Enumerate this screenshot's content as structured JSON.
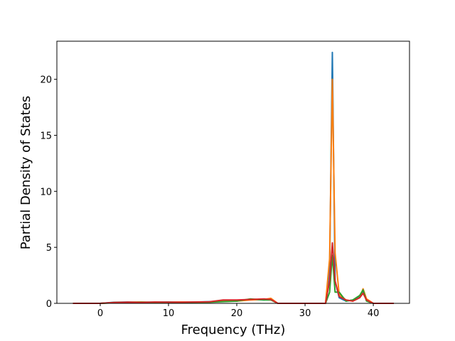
{
  "chart_data": {
    "type": "line",
    "xlabel": "Frequency (THz)",
    "ylabel": "Partial Density of States",
    "x": [
      -4,
      0,
      1,
      2,
      4,
      6,
      8,
      10,
      12,
      14,
      16,
      18,
      20,
      22,
      24,
      25,
      26,
      30,
      33,
      33.6,
      34,
      34.4,
      35,
      36,
      37,
      38,
      38.5,
      39,
      40,
      43
    ],
    "series": [
      {
        "color": "#1f77b4",
        "values": [
          0,
          0,
          0.05,
          0.1,
          0.12,
          0.1,
          0.1,
          0.12,
          0.1,
          0.12,
          0.15,
          0.2,
          0.25,
          0.35,
          0.3,
          0.4,
          0,
          0,
          0,
          3,
          22.4,
          2,
          0.5,
          0.2,
          0.3,
          0.6,
          1.1,
          0.3,
          0,
          0
        ]
      },
      {
        "color": "#ff7f0e",
        "values": [
          0,
          0,
          0.03,
          0.08,
          0.1,
          0.12,
          0.08,
          0.1,
          0.12,
          0.1,
          0.12,
          0.18,
          0.2,
          0.3,
          0.35,
          0.45,
          0,
          0,
          0,
          4,
          20,
          4.5,
          0.8,
          0.3,
          0.2,
          0.5,
          1.3,
          0.4,
          0,
          0
        ]
      },
      {
        "color": "#2ca02c",
        "values": [
          0,
          0,
          0.02,
          0.05,
          0.08,
          0.1,
          0.1,
          0.1,
          0.08,
          0.1,
          0.1,
          0.15,
          0.2,
          0.4,
          0.3,
          0.3,
          0,
          0,
          0,
          1,
          4.3,
          1,
          1,
          0.2,
          0.3,
          0.7,
          1.2,
          0.2,
          0,
          0
        ]
      },
      {
        "color": "#d62728",
        "values": [
          0,
          0,
          0.04,
          0.06,
          0.1,
          0.08,
          0.12,
          0.1,
          0.1,
          0.12,
          0.14,
          0.3,
          0.3,
          0.35,
          0.4,
          0.35,
          0,
          0,
          0,
          2,
          5.4,
          2,
          0.6,
          0.3,
          0.2,
          0.5,
          0.9,
          0.3,
          0,
          0
        ]
      }
    ],
    "xlim": [
      -6.35,
      45.3
    ],
    "ylim": [
      0,
      23.4
    ],
    "xticks": [
      0,
      10,
      20,
      30,
      40
    ],
    "yticks": [
      0,
      5,
      10,
      15,
      20
    ],
    "grid": false
  }
}
